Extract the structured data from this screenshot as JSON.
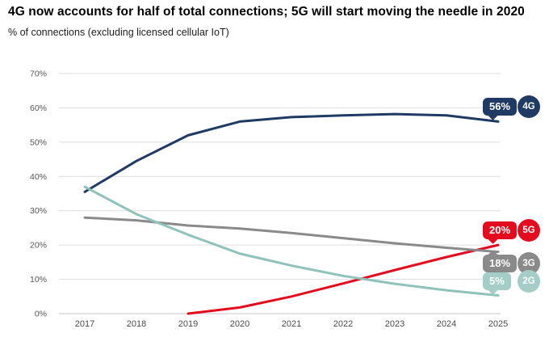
{
  "header": {
    "title": "4G now accounts for half of total connections; 5G will start moving the needle in 2020",
    "subtitle": "% of connections (excluding licensed cellular IoT)"
  },
  "chart_data": {
    "type": "line",
    "title": "4G now accounts for half of total connections; 5G will start moving the needle in 2020",
    "subtitle": "% of connections (excluding licensed cellular IoT)",
    "x": [
      2017,
      2018,
      2019,
      2020,
      2021,
      2022,
      2023,
      2024,
      2025
    ],
    "x_tick_labels": [
      "2017",
      "2018",
      "2019",
      "2020",
      "2021",
      "2022",
      "2023",
      "2024",
      "2025"
    ],
    "ylabel": "% of connections",
    "ylim": [
      0,
      70
    ],
    "y_ticks": [
      0,
      10,
      20,
      30,
      40,
      50,
      60,
      70
    ],
    "y_tick_labels": [
      "0%",
      "10%",
      "20%",
      "30%",
      "40%",
      "50%",
      "60%",
      "70%"
    ],
    "grid": "horizontal",
    "legend_position": "right-end-badges",
    "series": [
      {
        "name": "4G",
        "color": "#1f3a63",
        "start_year": 2017,
        "values": [
          35.5,
          44.5,
          52,
          56,
          57.3,
          57.8,
          58.2,
          57.8,
          56
        ]
      },
      {
        "name": "5G",
        "color": "#e30b1e",
        "start_year": 2019,
        "values": [
          0,
          1.8,
          5,
          8.8,
          12.7,
          16.5,
          20
        ]
      },
      {
        "name": "3G",
        "color": "#8a8a8a",
        "start_year": 2017,
        "values": [
          28,
          27.2,
          25.7,
          24.8,
          23.5,
          22,
          20.5,
          19.2,
          18
        ]
      },
      {
        "name": "2G",
        "color": "#8fc2ba",
        "start_year": 2017,
        "values": [
          37,
          29,
          23,
          17.5,
          14,
          11,
          8.7,
          6.8,
          5.3
        ]
      }
    ],
    "annotations": [
      {
        "series": "4G",
        "value_label": "56%",
        "label": "4G",
        "color": "#1f3a63",
        "tail": "bottom"
      },
      {
        "series": "5G",
        "value_label": "20%",
        "label": "5G",
        "color": "#e30b1e",
        "tail": "bottom"
      },
      {
        "series": "3G",
        "value_label": "18%",
        "label": "3G",
        "color": "#8a8a8a",
        "tail": "top"
      },
      {
        "series": "2G",
        "value_label": "5%",
        "label": "2G",
        "color": "#a3cdc6",
        "tail": "bottom"
      }
    ],
    "colors": {
      "gridline": "#dedede",
      "axis_line": "#c6c6c6",
      "tick_text": "#555555"
    }
  }
}
